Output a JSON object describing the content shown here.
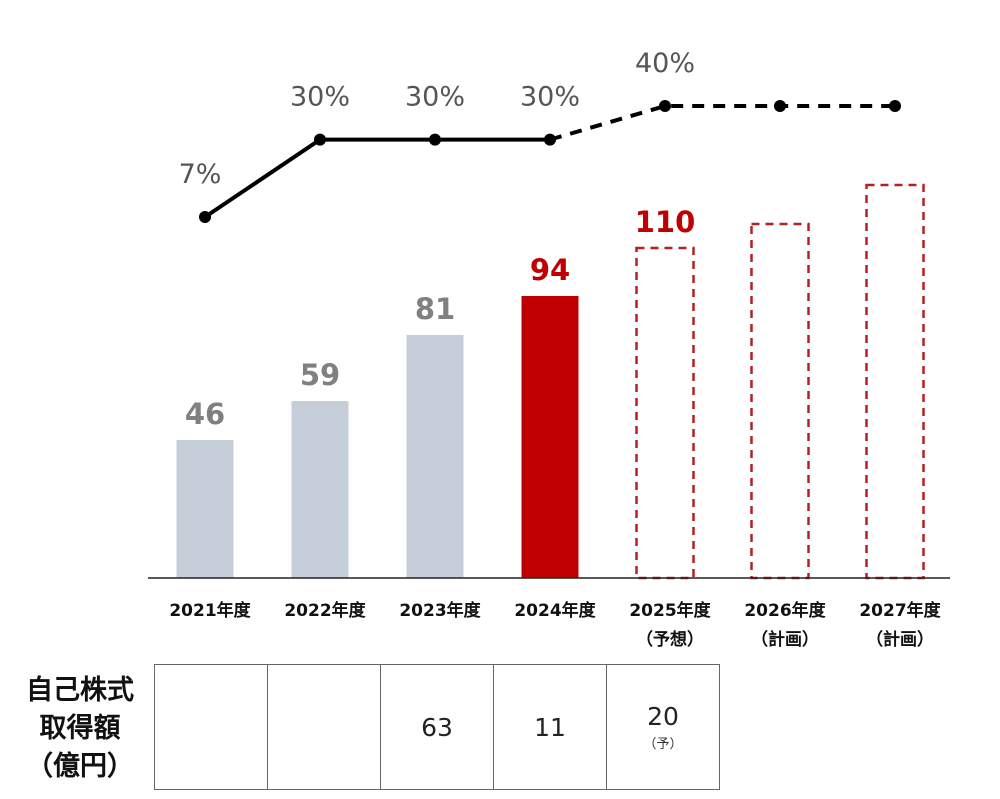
{
  "chart_data": {
    "type": "bar",
    "categories": [
      {
        "line1": "2021年度",
        "line2": ""
      },
      {
        "line1": "2022年度",
        "line2": ""
      },
      {
        "line1": "2023年度",
        "line2": ""
      },
      {
        "line1": "2024年度",
        "line2": ""
      },
      {
        "line1": "2025年度",
        "line2": "（予想）"
      },
      {
        "line1": "2026年度",
        "line2": "（計画）"
      },
      {
        "line1": "2027年度",
        "line2": "（計画）"
      }
    ],
    "bars": [
      {
        "value": 46,
        "label": "46",
        "style": "actual"
      },
      {
        "value": 59,
        "label": "59",
        "style": "actual"
      },
      {
        "value": 81,
        "label": "81",
        "style": "actual"
      },
      {
        "value": 94,
        "label": "94",
        "style": "highlight"
      },
      {
        "value": 110,
        "label": "110",
        "style": "forecast"
      },
      {
        "value": 118,
        "label": "",
        "style": "forecast"
      },
      {
        "value": 131,
        "label": "",
        "style": "forecast"
      }
    ],
    "ylim": [
      0,
      140
    ],
    "payout_line": {
      "values": [
        7,
        30,
        30,
        30,
        40,
        40,
        40
      ],
      "labels": [
        "7%",
        "30%",
        "30%",
        "30%",
        "40%",
        "",
        ""
      ],
      "solid_until_index": 3
    },
    "colors": {
      "actual": "#c5ced9",
      "highlight": "#c00000",
      "forecast_dash": "#b22222",
      "actual_label": "#808080",
      "highlight_label": "#c00000",
      "line": "#000000"
    }
  },
  "buyback": {
    "title_lines": [
      "自己株式",
      "取得額",
      "（億円）"
    ],
    "cells": [
      {
        "value": "",
        "note": ""
      },
      {
        "value": "",
        "note": ""
      },
      {
        "value": "63",
        "note": ""
      },
      {
        "value": "11",
        "note": ""
      },
      {
        "value": "20",
        "note": "（予）"
      }
    ]
  }
}
